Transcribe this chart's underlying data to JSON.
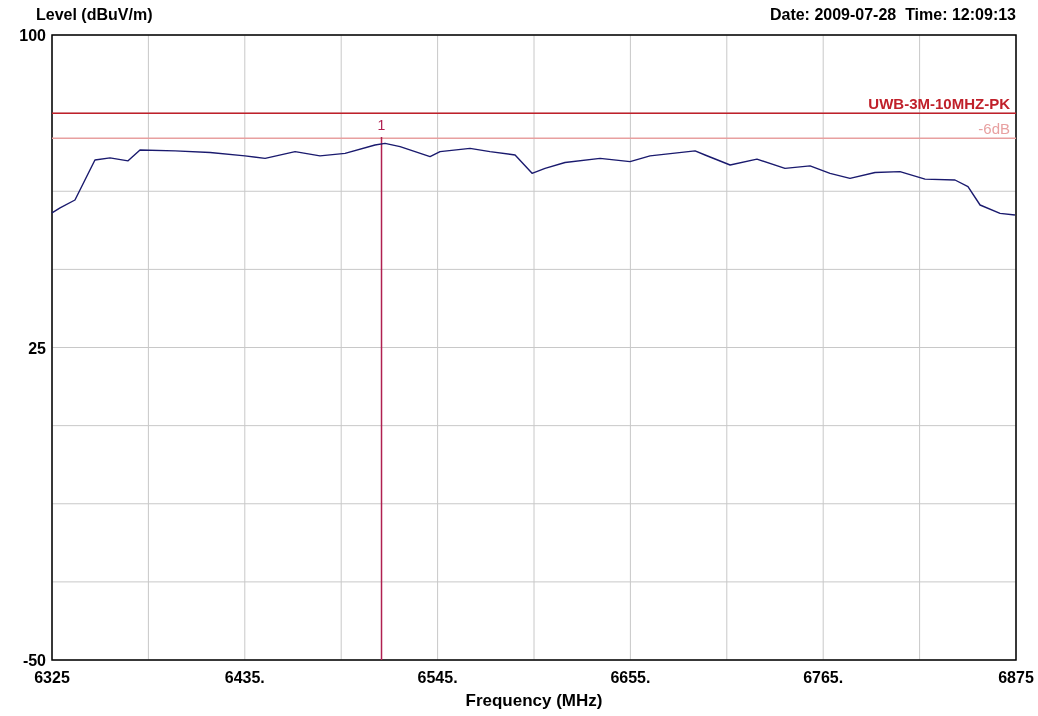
{
  "chart_data": {
    "type": "line",
    "ylabel": "Level (dBuV/m)",
    "xlabel": "Frequency (MHz)",
    "annotations": [
      "Date: 2009-07-28  Time: 12:09:13",
      {
        "text": "1",
        "x": 6513,
        "y": 74
      }
    ],
    "x": [
      6325,
      6329.6,
      6338.1,
      6343.8,
      6349.5,
      6358.1,
      6368.4,
      6375.2,
      6395.2,
      6415.2,
      6435.1,
      6446.6,
      6463.7,
      6477.9,
      6492.2,
      6509.3,
      6515,
      6523.6,
      6540.7,
      6546.4,
      6563.5,
      6574.9,
      6589.2,
      6598.9,
      6606.3,
      6617.7,
      6637.7,
      6654.8,
      6666.2,
      6691.9,
      6697.6,
      6711.9,
      6727.2,
      6743.2,
      6757.5,
      6768.9,
      6780.3,
      6794.6,
      6808.8,
      6823.1,
      6840.2,
      6847.6,
      6854.5,
      6865.9,
      6874.4
    ],
    "series": [
      {
        "color": "#1a1a6e",
        "values": [
          57.3,
          58.5,
          60.4,
          65.2,
          70,
          70.5,
          69.8,
          72.4,
          72.2,
          71.8,
          71,
          70.4,
          72,
          71,
          71.6,
          73.6,
          74,
          73.2,
          70.8,
          72,
          72.8,
          72,
          71.2,
          66.8,
          68,
          69.4,
          70.4,
          69.6,
          71,
          72.2,
          71.2,
          68.8,
          70.2,
          68,
          68.6,
          66.8,
          65.6,
          67,
          67.2,
          65.4,
          65.2,
          63.6,
          59.2,
          57.2,
          56.8
        ]
      }
    ],
    "xlim": [
      6325,
      6875
    ],
    "ylim": [
      -50,
      100
    ],
    "xticks": [
      6325,
      {
        "value": 6380,
        "label": null
      },
      {
        "value": 6435,
        "label": "6435."
      },
      {
        "value": 6490,
        "label": null
      },
      {
        "value": 6545,
        "label": "6545."
      },
      {
        "value": 6600,
        "label": null
      },
      {
        "value": 6655,
        "label": "6655."
      },
      {
        "value": 6710,
        "label": null
      },
      {
        "value": 6765,
        "label": "6765."
      },
      {
        "value": 6820,
        "label": null
      },
      6875
    ],
    "yticks": [
      -50,
      {
        "value": -31.25,
        "label": null
      },
      {
        "value": -12.5,
        "label": null
      },
      {
        "value": 6.25,
        "label": null
      },
      25,
      {
        "value": 43.75,
        "label": null
      },
      {
        "value": 62.5,
        "label": null
      },
      {
        "value": 81.25,
        "label": null
      },
      100
    ],
    "grid": true,
    "marker": "none",
    "line_style": "solid",
    "ref_lines": [
      {
        "axis": "y",
        "value": 81.25,
        "label": "UWB-3M-10MHZ-PK",
        "color": "#c0202a"
      },
      {
        "axis": "y",
        "value": 75.25,
        "label": "-6dB",
        "color": "#e8a0a0"
      },
      {
        "axis": "x",
        "value": 6513,
        "color": "#b02050"
      }
    ]
  }
}
